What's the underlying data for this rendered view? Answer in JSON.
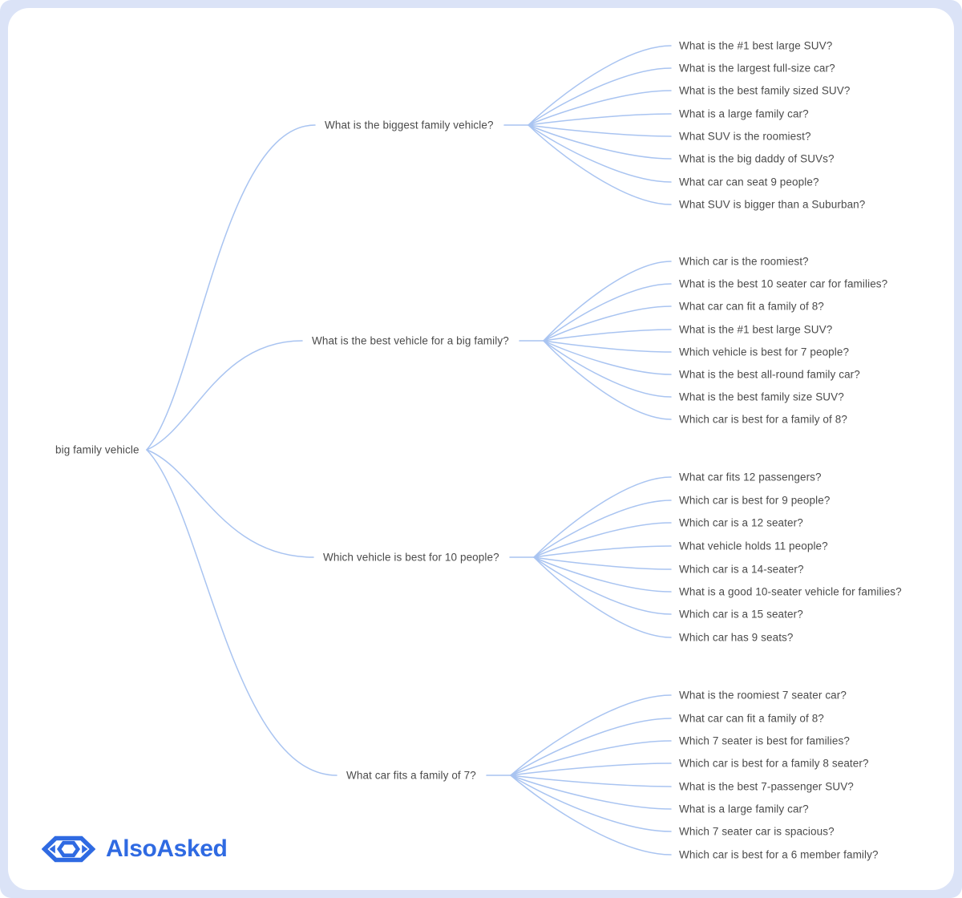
{
  "colors": {
    "frame_background": "#dbe3f7",
    "card_background": "#ffffff",
    "edge_line": "#a9c4f1",
    "node_text": "#4b4b4b",
    "brand_blue": "#2f6ae2"
  },
  "logo": {
    "wordmark": "AlsoAsked",
    "icon": "alsoasked-eye-icon"
  },
  "tree": {
    "root": "big family vehicle",
    "branches": [
      {
        "label": "What is the biggest family vehicle?",
        "children": [
          "What is the #1 best large SUV?",
          "What is the largest full-size car?",
          "What is the best family sized SUV?",
          "What is a large family car?",
          "What SUV is the roomiest?",
          "What is the big daddy of SUVs?",
          "What car can seat 9 people?",
          "What SUV is bigger than a Suburban?"
        ]
      },
      {
        "label": "What is the best vehicle for a big family?",
        "children": [
          "Which car is the roomiest?",
          "What is the best 10 seater car for families?",
          "What car can fit a family of 8?",
          "What is the #1 best large SUV?",
          "Which vehicle is best for 7 people?",
          "What is the best all-round family car?",
          "What is the best family size SUV?",
          "Which car is best for a family of 8?"
        ]
      },
      {
        "label": "Which vehicle is best for 10 people?",
        "children": [
          "What car fits 12 passengers?",
          "Which car is best for 9 people?",
          "Which car is a 12 seater?",
          "What vehicle holds 11 people?",
          "Which car is a 14-seater?",
          "What is a good 10-seater vehicle for families?",
          "Which car is a 15 seater?",
          "Which car has 9 seats?"
        ]
      },
      {
        "label": "What car fits a family of 7?",
        "children": [
          "What is the roomiest 7 seater car?",
          "What car can fit a family of 8?",
          "Which 7 seater is best for families?",
          "Which car is best for a family 8 seater?",
          "What is the best 7-passenger SUV?",
          "What is a large family car?",
          "Which 7 seater car is spacious?",
          "Which car is best for a 6 member family?"
        ]
      }
    ]
  }
}
